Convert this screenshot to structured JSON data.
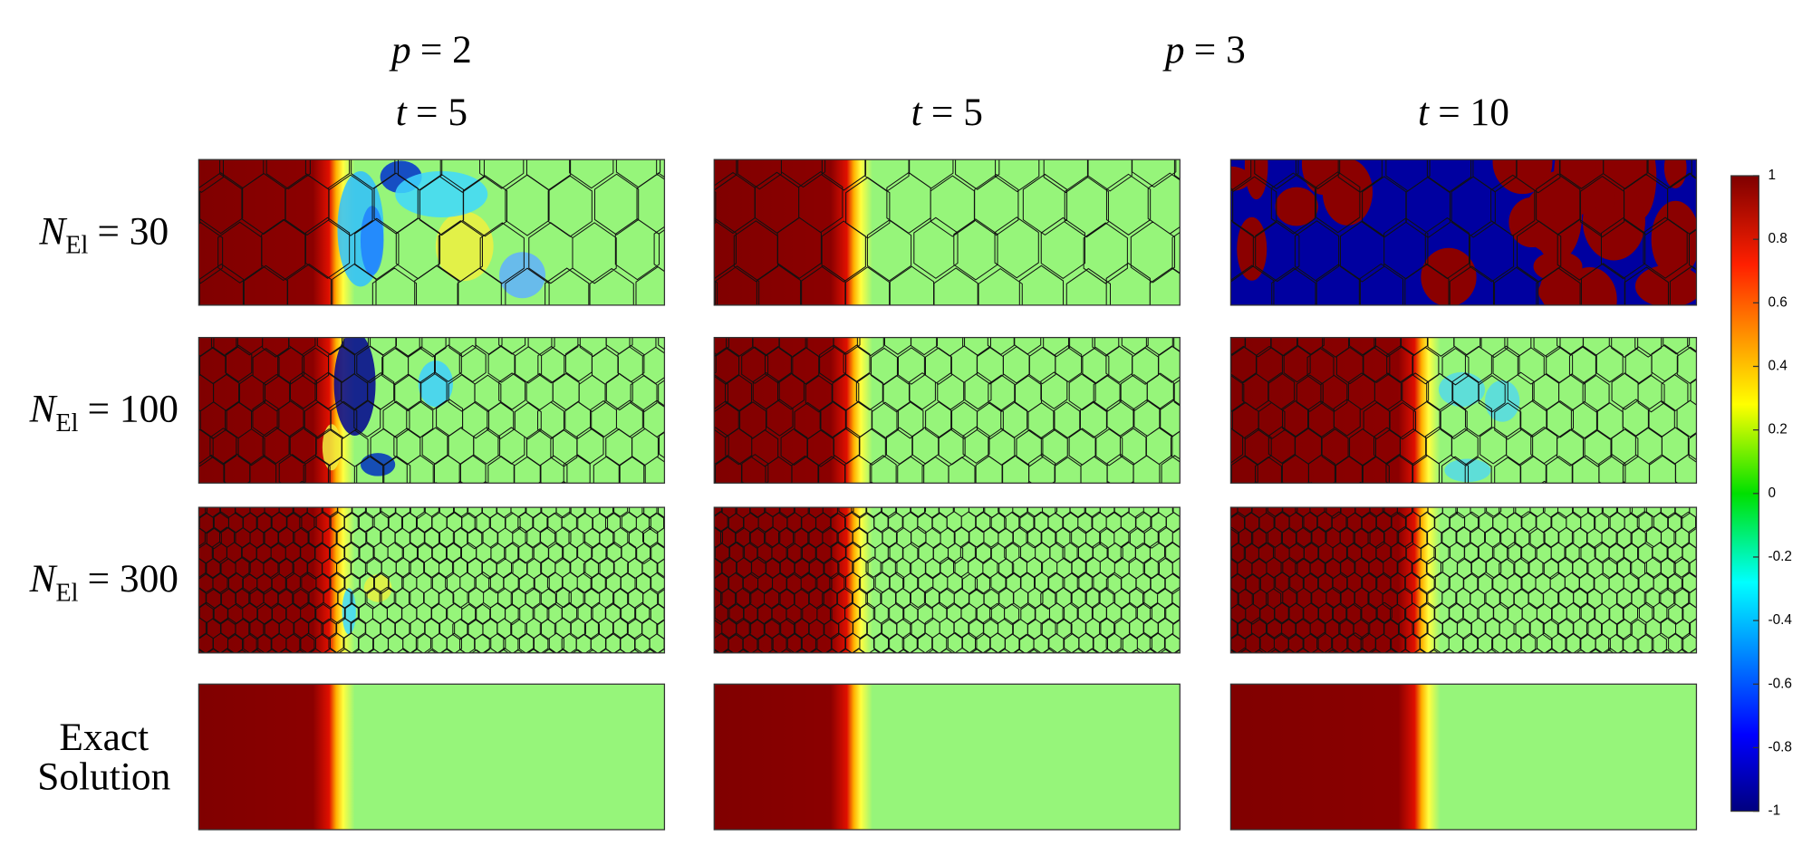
{
  "header": {
    "groups": [
      {
        "symbol": "p",
        "rest": "= 2"
      },
      {
        "symbol": "p",
        "rest": "= 3"
      }
    ],
    "columns": [
      {
        "symbol": "t",
        "rest": "= 5"
      },
      {
        "symbol": "t",
        "rest": "= 5"
      },
      {
        "symbol": "t",
        "rest": "= 10"
      }
    ]
  },
  "rows": [
    {
      "symbol": "N",
      "subscript": "El",
      "rest": "= 30"
    },
    {
      "symbol": "N",
      "subscript": "El",
      "rest": "= 100"
    },
    {
      "symbol": "N",
      "subscript": "El",
      "rest": "= 300"
    },
    {
      "lines": [
        "Exact",
        "Solution"
      ]
    }
  ],
  "colorbar": {
    "lim": [
      -1,
      1
    ],
    "ticks": [
      1,
      0.8,
      0.6,
      0.4,
      0.2,
      0,
      -0.2,
      -0.4,
      -0.6,
      -0.8,
      -1
    ]
  }
}
